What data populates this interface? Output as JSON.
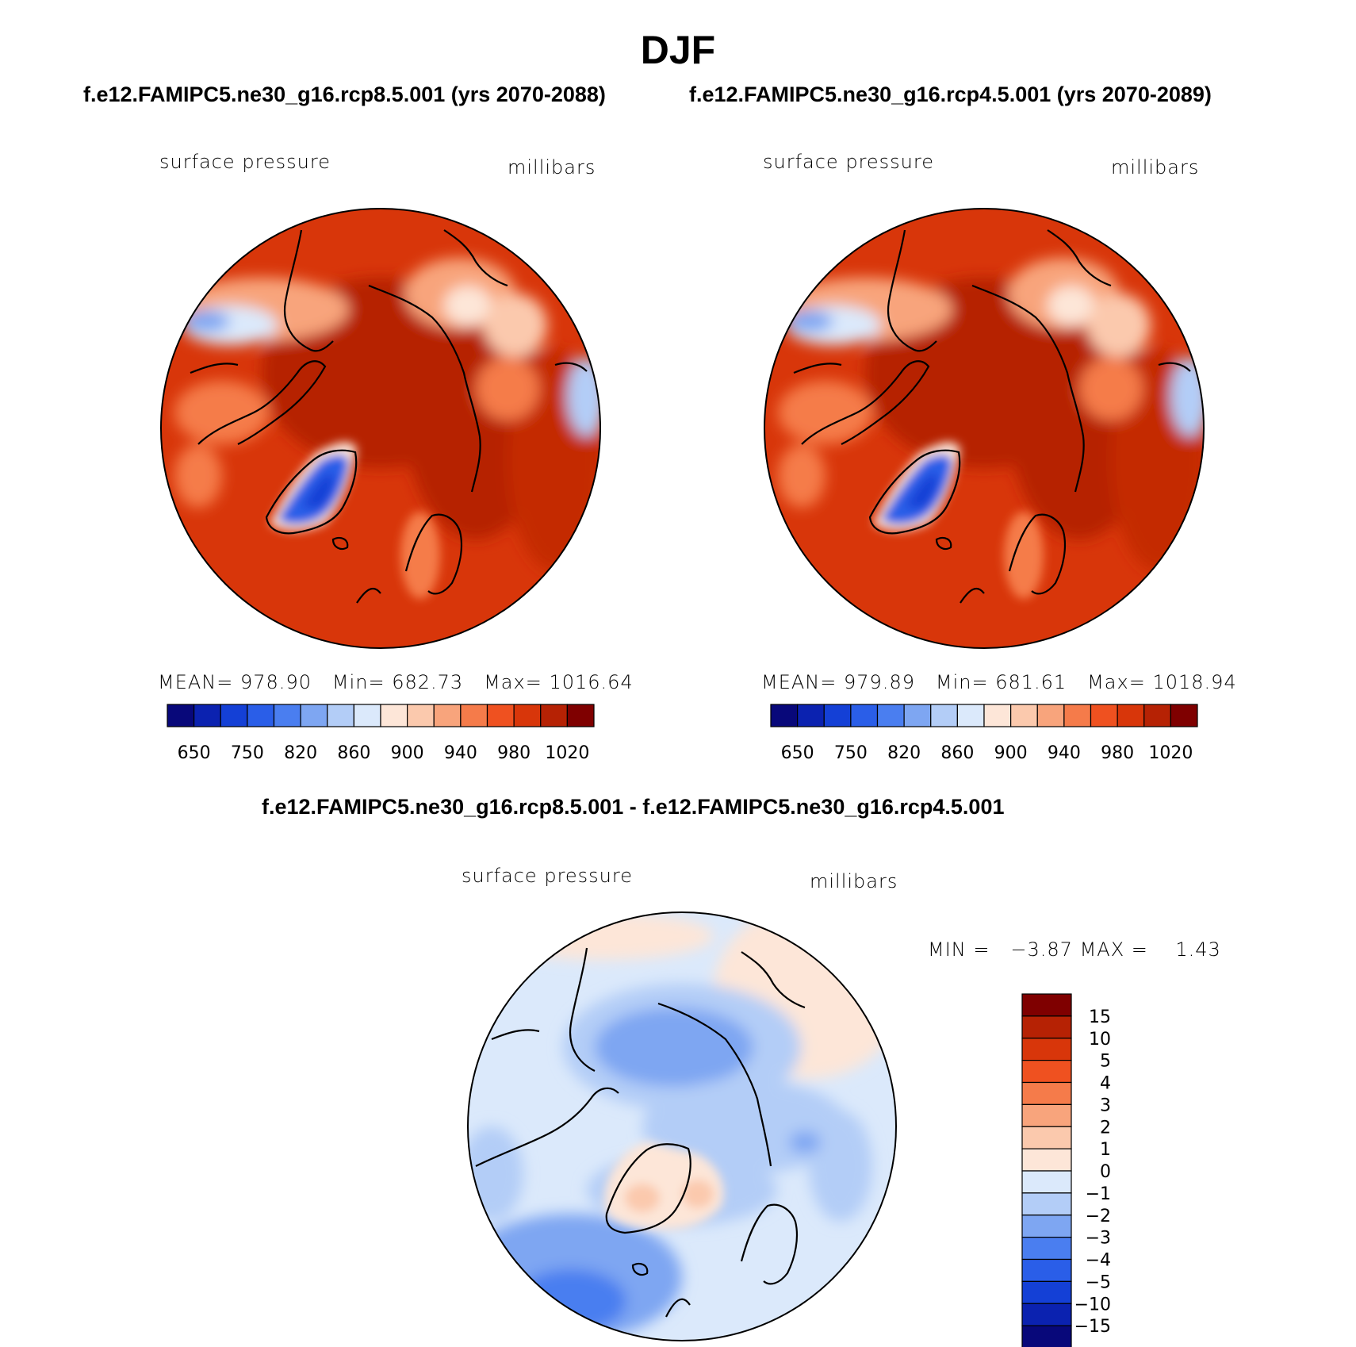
{
  "main_title": "DJF",
  "panels": [
    {
      "case_title": "f.e12.FAMIPC5.ne30_g16.rcp8.5.001 (yrs 2070-2088)",
      "variable": "surface pressure",
      "units": "millibars",
      "mean_label": "MEAN=",
      "mean": "978.90",
      "min_label": "Min=",
      "min": "682.73",
      "max_label": "Max=",
      "max": "1016.64"
    },
    {
      "case_title": "f.e12.FAMIPC5.ne30_g16.rcp4.5.001 (yrs 2070-2089)",
      "variable": "surface pressure",
      "units": "millibars",
      "mean_label": "MEAN=",
      "mean": "979.89",
      "min_label": "Min=",
      "min": "681.61",
      "max_label": "Max=",
      "max": "1018.94"
    }
  ],
  "diff_panel": {
    "title": "f.e12.FAMIPC5.ne30_g16.rcp8.5.001 - f.e12.FAMIPC5.ne30_g16.rcp4.5.001",
    "variable": "surface pressure",
    "units": "millibars",
    "min_label": "MIN =",
    "min": "−3.87",
    "max_label": "MAX =",
    "max": "1.43"
  },
  "chart_data": [
    {
      "type": "heatmap",
      "projection": "north polar stereographic",
      "field": "surface pressure",
      "units": "millibars",
      "colorbar_orientation": "horizontal",
      "colorbar_colors": [
        "#08087a",
        "#0b22b0",
        "#1440d6",
        "#2a5ee8",
        "#4a7ef0",
        "#7ea6f2",
        "#b3cdf7",
        "#dbe9fb",
        "#fde6d8",
        "#fbc9ad",
        "#f8a47c",
        "#f57b4a",
        "#ef5120",
        "#d8360a",
        "#b62204",
        "#7f0000"
      ],
      "colorbar_labels": [
        "650",
        "750",
        "820",
        "860",
        "900",
        "940",
        "980",
        "1020"
      ],
      "stats": {
        "mean": 978.9,
        "min": 682.73,
        "max": 1016.64
      }
    },
    {
      "type": "heatmap",
      "projection": "north polar stereographic",
      "field": "surface pressure",
      "units": "millibars",
      "colorbar_orientation": "horizontal",
      "colorbar_colors": [
        "#08087a",
        "#0b22b0",
        "#1440d6",
        "#2a5ee8",
        "#4a7ef0",
        "#7ea6f2",
        "#b3cdf7",
        "#dbe9fb",
        "#fde6d8",
        "#fbc9ad",
        "#f8a47c",
        "#f57b4a",
        "#ef5120",
        "#d8360a",
        "#b62204",
        "#7f0000"
      ],
      "colorbar_labels": [
        "650",
        "750",
        "820",
        "860",
        "900",
        "940",
        "980",
        "1020"
      ],
      "stats": {
        "mean": 979.89,
        "min": 681.61,
        "max": 1018.94
      }
    },
    {
      "type": "heatmap",
      "projection": "north polar stereographic",
      "field": "surface pressure difference",
      "units": "millibars",
      "colorbar_orientation": "vertical",
      "colorbar_colors": [
        "#7f0000",
        "#b62204",
        "#d8360a",
        "#ef5120",
        "#f57b4a",
        "#f8a47c",
        "#fbc9ad",
        "#fde6d8",
        "#dbe9fb",
        "#b3cdf7",
        "#7ea6f2",
        "#4a7ef0",
        "#2a5ee8",
        "#1440d6",
        "#0b22b0",
        "#08087a"
      ],
      "colorbar_labels": [
        "15",
        "10",
        "5",
        "4",
        "3",
        "2",
        "1",
        "0",
        "−1",
        "−2",
        "−3",
        "−4",
        "−5",
        "−10",
        "−15"
      ],
      "stats": {
        "min": -3.87,
        "max": 1.43
      }
    }
  ]
}
